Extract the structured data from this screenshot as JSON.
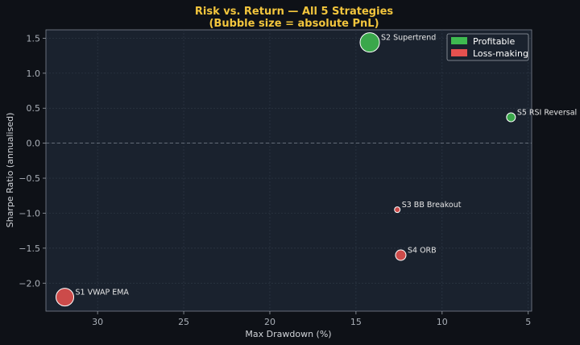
{
  "chart_data": {
    "type": "scatter",
    "title": "Risk vs. Return — All 5 Strategies",
    "subtitle": "(Bubble size = absolute PnL)",
    "xlabel": "Max Drawdown (%)",
    "ylabel": "Sharpe Ratio (annualised)",
    "x_inverted": true,
    "xlim": [
      33,
      4.8
    ],
    "ylim": [
      -2.4,
      1.62
    ],
    "xticks": [
      30,
      25,
      20,
      15,
      10,
      5
    ],
    "yticks": [
      1.5,
      1.0,
      0.5,
      0.0,
      -0.5,
      -1.0,
      -1.5,
      -2.0
    ],
    "ytick_labels": [
      "1.5",
      "1.0",
      "0.5",
      "0.0",
      "−0.5",
      "−1.0",
      "−1.5",
      "−2.0"
    ],
    "grid": true,
    "reference_line_y": 0,
    "legend": {
      "placement": "top-right",
      "entries": [
        {
          "label": "Profitable",
          "color": "#3fba50"
        },
        {
          "label": "Loss-making",
          "color": "#e5514f"
        }
      ]
    },
    "colors": {
      "profitable": "#3fba50",
      "loss": "#e5514f"
    },
    "points": [
      {
        "label": "S1 VWAP EMA",
        "x": 31.9,
        "y": -2.2,
        "size": 11,
        "profitable": false
      },
      {
        "label": "S2 Supertrend",
        "x": 14.2,
        "y": 1.44,
        "size": 12,
        "profitable": true
      },
      {
        "label": "S3 BB Breakout",
        "x": 12.6,
        "y": -0.95,
        "size": 3.5,
        "profitable": false
      },
      {
        "label": "S4 ORB",
        "x": 12.4,
        "y": -1.6,
        "size": 6.5,
        "profitable": false
      },
      {
        "label": "S5 RSI Reversal",
        "x": 6.0,
        "y": 0.37,
        "size": 5.5,
        "profitable": true
      }
    ]
  }
}
